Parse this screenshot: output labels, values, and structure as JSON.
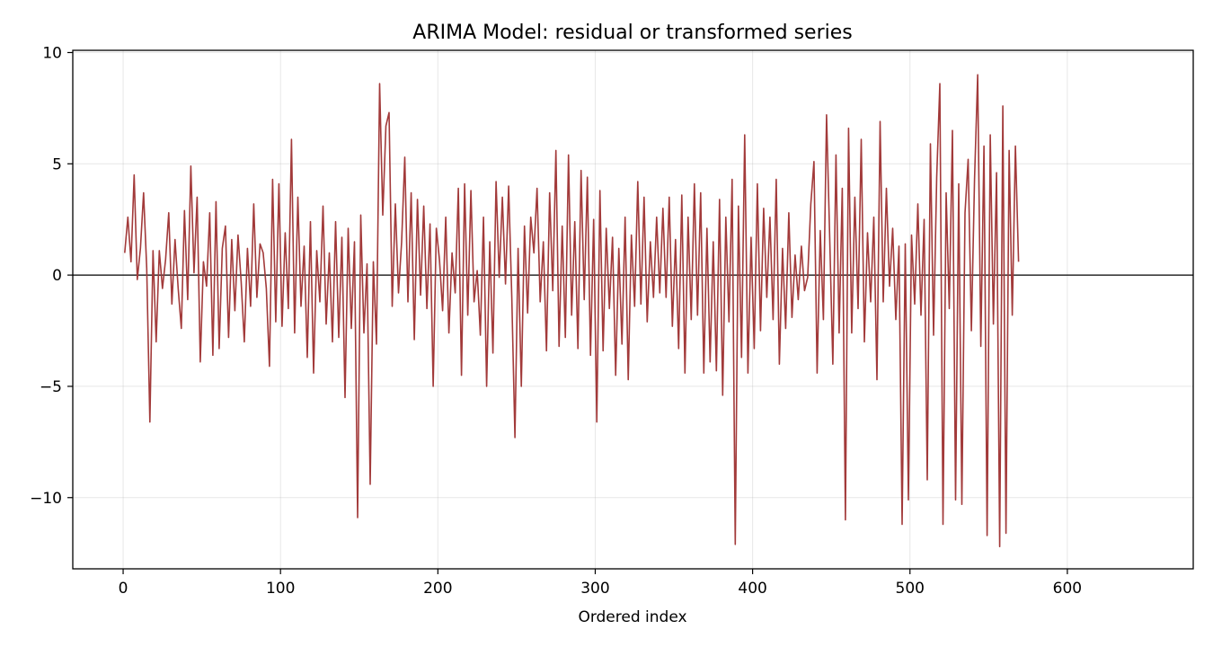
{
  "chart_data": {
    "type": "line",
    "title": "ARIMA Model: residual or transformed series",
    "xlabel": "Ordered index",
    "ylabel": "",
    "xlim": [
      -32,
      680
    ],
    "ylim": [
      -13.2,
      10.1
    ],
    "xticks": [
      0,
      100,
      200,
      300,
      400,
      500,
      600
    ],
    "xtick_labels": [
      "0",
      "100",
      "200",
      "300",
      "400",
      "500",
      "600"
    ],
    "yticks": [
      -10,
      -5,
      0,
      5,
      10
    ],
    "ytick_labels": [
      "−10",
      "−5",
      "0",
      "5",
      "10"
    ],
    "grid": true,
    "reference_line_y": 0,
    "colors": {
      "series": "#a23a3a",
      "reference": "#000000"
    },
    "series": [
      {
        "x_start": 1,
        "x_step": 2,
        "values": [
          1.0,
          2.6,
          0.6,
          4.5,
          -0.2,
          1.2,
          3.7,
          0.3,
          -6.6,
          1.1,
          -3.0,
          1.1,
          -0.6,
          0.7,
          2.8,
          -1.3,
          1.6,
          -0.6,
          -2.4,
          2.9,
          -1.1,
          4.9,
          0.1,
          3.5,
          -3.9,
          0.6,
          -0.5,
          2.8,
          -3.6,
          3.3,
          -3.3,
          1.2,
          2.2,
          -2.8,
          1.6,
          -1.6,
          1.8,
          -0.3,
          -3.0,
          1.2,
          -1.4,
          3.2,
          -1.0,
          1.4,
          1.0,
          -0.6,
          -4.1,
          4.3,
          -2.1,
          4.1,
          -2.3,
          1.9,
          -1.5,
          6.1,
          -2.6,
          3.5,
          -1.4,
          1.3,
          -3.7,
          2.4,
          -4.4,
          1.1,
          -1.2,
          3.1,
          -2.2,
          1.0,
          -3.0,
          2.4,
          -2.8,
          1.7,
          -5.5,
          2.1,
          -2.4,
          1.5,
          -10.9,
          2.7,
          -2.6,
          0.5,
          -9.4,
          0.6,
          -3.1,
          8.6,
          2.7,
          6.7,
          7.3,
          -1.4,
          3.2,
          -0.8,
          1.5,
          5.3,
          -1.2,
          3.7,
          -2.9,
          3.4,
          -0.9,
          3.1,
          -1.5,
          2.3,
          -5.0,
          2.1,
          0.7,
          -1.6,
          2.6,
          -2.6,
          1.0,
          -0.8,
          3.9,
          -4.5,
          4.1,
          -1.8,
          3.8,
          -1.2,
          0.2,
          -2.7,
          2.6,
          -5.0,
          1.5,
          -3.5,
          4.2,
          -0.1,
          3.5,
          -0.4,
          4.0,
          -1.0,
          -7.3,
          1.2,
          -5.0,
          2.2,
          -1.7,
          2.6,
          1.0,
          3.9,
          -1.2,
          1.5,
          -3.4,
          3.7,
          -0.7,
          5.6,
          -3.2,
          2.2,
          -2.8,
          5.4,
          -1.8,
          2.4,
          -3.3,
          4.7,
          -1.1,
          4.4,
          -3.6,
          2.5,
          -6.6,
          3.8,
          -3.4,
          2.1,
          -1.5,
          1.7,
          -4.5,
          1.2,
          -3.1,
          2.6,
          -4.7,
          1.8,
          -1.4,
          4.2,
          -1.3,
          3.5,
          -2.1,
          1.5,
          -1.0,
          2.6,
          -0.8,
          3.0,
          -1.0,
          3.5,
          -2.3,
          1.6,
          -3.3,
          3.6,
          -4.4,
          2.6,
          -2.0,
          4.1,
          -1.8,
          3.7,
          -4.4,
          2.1,
          -3.9,
          1.5,
          -4.3,
          3.4,
          -5.4,
          2.6,
          -2.1,
          4.3,
          -12.1,
          3.1,
          -3.7,
          6.3,
          -4.4,
          1.7,
          -3.3,
          4.1,
          -2.5,
          3.0,
          -1.0,
          2.6,
          -2.0,
          4.3,
          -4.0,
          1.2,
          -2.4,
          2.8,
          -1.9,
          0.9,
          -1.1,
          1.3,
          -0.7,
          -0.1,
          3.2,
          5.1,
          -4.4,
          2.0,
          -2.0,
          7.2,
          1.7,
          -4.0,
          5.4,
          -2.6,
          3.9,
          -11.0,
          6.6,
          -2.6,
          3.5,
          -1.5,
          6.1,
          -3.0,
          1.9,
          -1.2,
          2.6,
          -4.7,
          6.9,
          -1.2,
          3.9,
          -0.5,
          2.1,
          -2.0,
          1.3,
          -11.2,
          1.4,
          -10.1,
          1.8,
          -1.3,
          3.2,
          -1.8,
          2.5,
          -9.2,
          5.9,
          -2.7,
          4.4,
          8.6,
          -11.2,
          3.7,
          -1.5,
          6.5,
          -10.1,
          4.1,
          -10.3,
          2.8,
          5.2,
          -2.5,
          4.3,
          9.0,
          -3.2,
          5.8,
          -11.7,
          6.3,
          -2.2,
          4.6,
          -12.2,
          7.6,
          -11.6,
          5.6,
          -1.8,
          5.8,
          0.6
        ]
      }
    ]
  }
}
